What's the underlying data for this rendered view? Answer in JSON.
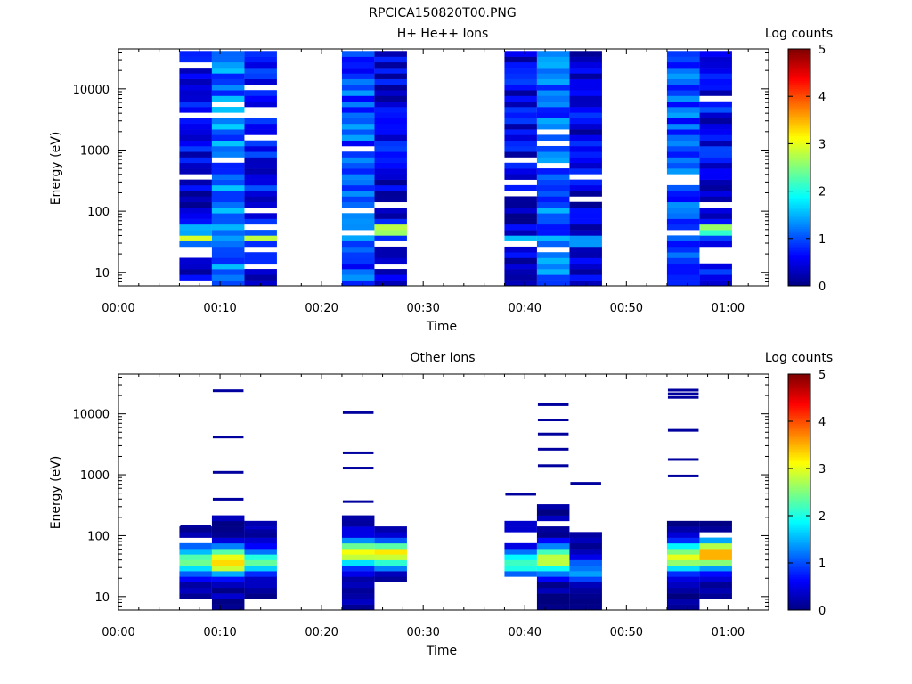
{
  "figure_title": "RPCICA150820T00.PNG",
  "colormap": [
    "#00007f",
    "#0000ff",
    "#007fff",
    "#00ffff",
    "#7fff7f",
    "#ffff00",
    "#ff7f00",
    "#ff0000",
    "#7f0000"
  ],
  "chart_data": [
    {
      "type": "heatmap",
      "title": "H+ He++ Ions",
      "xlabel": "Time",
      "ylabel": "Energy (eV)",
      "yscale": "log",
      "xlim_min": [
        0,
        64
      ],
      "ylim": [
        6,
        45000
      ],
      "x_ticks_min": [
        0,
        10,
        20,
        30,
        40,
        50,
        60
      ],
      "x_tick_labels": [
        "00:00",
        "00:10",
        "00:20",
        "00:30",
        "00:40",
        "00:50",
        "01:00"
      ],
      "y_ticks": [
        10,
        100,
        1000,
        10000
      ],
      "y_tick_labels": [
        "10",
        "100",
        "1000",
        "10000"
      ],
      "colorbar_label": "Log counts",
      "colorbar_range": [
        0,
        5
      ],
      "colorbar_ticks": [
        0,
        1,
        2,
        3,
        4,
        5
      ],
      "grid": false,
      "columns": [
        {
          "t_start": 6.0,
          "t_end": 9.2,
          "base": 0.5,
          "peaks": [
            {
              "logE": 1.55,
              "width": 0.08,
              "value": 3.1
            },
            {
              "logE": 1.7,
              "width": 0.12,
              "value": 1.6
            }
          ],
          "gaps": [],
          "seed": 11
        },
        {
          "t_start": 9.2,
          "t_end": 12.4,
          "base": 1.2,
          "peaks": [
            {
              "logE": 1.6,
              "width": 0.15,
              "value": 1.4
            }
          ],
          "gaps": [],
          "seed": 23
        },
        {
          "t_start": 12.4,
          "t_end": 15.6,
          "base": 0.6,
          "peaks": [
            {
              "logE": 1.55,
              "width": 0.08,
              "value": 2.8
            }
          ],
          "gaps": [],
          "seed": 37
        },
        {
          "t_start": 22.0,
          "t_end": 25.2,
          "base": 1.0,
          "peaks": [],
          "gaps": [],
          "seed": 41
        },
        {
          "t_start": 25.2,
          "t_end": 28.4,
          "base": 0.5,
          "peaks": [
            {
              "logE": 1.7,
              "width": 0.12,
              "value": 3.2
            }
          ],
          "gaps": [],
          "seed": 53
        },
        {
          "t_start": 38.0,
          "t_end": 41.2,
          "base": 0.5,
          "peaks": [
            {
              "logE": 1.5,
              "width": 0.1,
              "value": 2.0
            }
          ],
          "gaps": [],
          "seed": 67
        },
        {
          "t_start": 41.2,
          "t_end": 44.4,
          "base": 1.1,
          "peaks": [
            {
              "logE": 1.55,
              "width": 0.1,
              "value": 1.5
            }
          ],
          "gaps": [
            {
              "logE": 1.35,
              "width": 0.05
            }
          ],
          "seed": 71
        },
        {
          "t_start": 44.4,
          "t_end": 47.6,
          "base": 0.5,
          "peaks": [
            {
              "logE": 1.5,
              "width": 0.1,
              "value": 1.7
            }
          ],
          "gaps": [],
          "seed": 83
        },
        {
          "t_start": 54.0,
          "t_end": 57.2,
          "base": 1.0,
          "peaks": [
            {
              "logE": 1.6,
              "width": 0.1,
              "value": 1.5
            }
          ],
          "gaps": [],
          "seed": 97
        },
        {
          "t_start": 57.2,
          "t_end": 60.4,
          "base": 0.6,
          "peaks": [
            {
              "logE": 1.7,
              "width": 0.08,
              "value": 3.3
            }
          ],
          "gaps": [
            {
              "logE": 1.3,
              "width": 0.1
            }
          ],
          "seed": 101
        }
      ]
    },
    {
      "type": "heatmap",
      "title": "Other Ions",
      "xlabel": "Time",
      "ylabel": "Energy (eV)",
      "yscale": "log",
      "xlim_min": [
        0,
        64
      ],
      "ylim": [
        6,
        45000
      ],
      "x_ticks_min": [
        0,
        10,
        20,
        30,
        40,
        50,
        60
      ],
      "x_tick_labels": [
        "00:00",
        "00:10",
        "00:20",
        "00:30",
        "00:40",
        "00:50",
        "01:00"
      ],
      "y_ticks": [
        10,
        100,
        1000,
        10000
      ],
      "y_tick_labels": [
        "10",
        "100",
        "1000",
        "10000"
      ],
      "colorbar_label": "Log counts",
      "colorbar_range": [
        0,
        5
      ],
      "colorbar_ticks": [
        0,
        1,
        2,
        3,
        4,
        5
      ],
      "grid": false,
      "columns": [
        {
          "t_start": 6.0,
          "t_end": 9.2,
          "min_logE": 1.0,
          "max_logE": 2.15,
          "peak_logE": 1.6,
          "peak_value": 2.5,
          "edge_value": 0.2,
          "lines": [
            2.15
          ],
          "seed": 5
        },
        {
          "t_start": 9.2,
          "t_end": 12.4,
          "min_logE": 0.78,
          "max_logE": 2.35,
          "peak_logE": 1.58,
          "peak_value": 3.5,
          "edge_value": 0.2,
          "lines": [
            4.38,
            3.62,
            3.04,
            2.6
          ],
          "seed": 9
        },
        {
          "t_start": 12.4,
          "t_end": 15.6,
          "min_logE": 1.0,
          "max_logE": 2.3,
          "peak_logE": 1.58,
          "peak_value": 2.2,
          "edge_value": 0.15,
          "lines": [
            2.08
          ],
          "seed": 13
        },
        {
          "t_start": 22.0,
          "t_end": 25.2,
          "min_logE": 0.78,
          "max_logE": 2.35,
          "peak_logE": 1.72,
          "peak_value": 3.1,
          "edge_value": 0.2,
          "lines": [
            4.02,
            3.36,
            3.11,
            2.56
          ],
          "seed": 17
        },
        {
          "t_start": 25.2,
          "t_end": 28.4,
          "min_logE": 1.2,
          "max_logE": 2.12,
          "peak_logE": 1.7,
          "peak_value": 3.2,
          "edge_value": 0.15,
          "lines": [],
          "seed": 19
        },
        {
          "t_start": 38.0,
          "t_end": 41.2,
          "min_logE": 1.3,
          "max_logE": 2.2,
          "peak_logE": 1.55,
          "peak_value": 2.1,
          "edge_value": 0.2,
          "lines": [
            2.68
          ],
          "seed": 29
        },
        {
          "t_start": 41.2,
          "t_end": 44.4,
          "min_logE": 0.78,
          "max_logE": 2.5,
          "peak_logE": 1.6,
          "peak_value": 3.0,
          "edge_value": 0.15,
          "lines": [
            4.15,
            3.9,
            3.67,
            3.42,
            3.15
          ],
          "seed": 31
        },
        {
          "t_start": 44.4,
          "t_end": 47.6,
          "min_logE": 0.78,
          "max_logE": 2.3,
          "peak_logE": 1.45,
          "peak_value": 1.4,
          "edge_value": 0.15,
          "lines": [
            2.86
          ],
          "seed": 43
        },
        {
          "t_start": 54.0,
          "t_end": 57.2,
          "min_logE": 0.78,
          "max_logE": 2.3,
          "peak_logE": 1.65,
          "peak_value": 3.1,
          "edge_value": 0.2,
          "lines": [
            4.39,
            4.33,
            4.27,
            3.73,
            3.25,
            2.98
          ],
          "seed": 47
        },
        {
          "t_start": 57.2,
          "t_end": 60.4,
          "min_logE": 0.95,
          "max_logE": 2.35,
          "peak_logE": 1.7,
          "peak_value": 3.6,
          "edge_value": 0.2,
          "lines": [],
          "seed": 59
        }
      ]
    }
  ]
}
